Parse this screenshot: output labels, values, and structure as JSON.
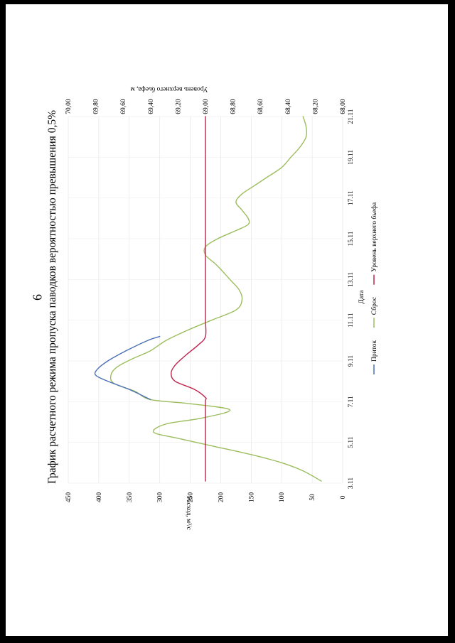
{
  "page_number": "6",
  "chart_data": {
    "type": "line",
    "title": "График расчетного режима пропуска паводков вероятностью превышения 0,5%",
    "xlabel": "Дата",
    "ylabel_left": "Расход, м³/с",
    "ylabel_right": "Уровень верхнего бьефа, м",
    "x_ticks": [
      "3.11",
      "5.11",
      "7.11",
      "9.11",
      "11.11",
      "13.11",
      "15.11",
      "17.11",
      "19.11",
      "21.11"
    ],
    "x_tick_days": [
      3,
      5,
      7,
      9,
      11,
      13,
      15,
      17,
      19,
      21
    ],
    "xlim": [
      3,
      21
    ],
    "ylim_left": [
      0,
      450
    ],
    "yticks_left": [
      0,
      50,
      100,
      150,
      200,
      250,
      300,
      350,
      400,
      450
    ],
    "ylim_right": [
      68.0,
      70.0
    ],
    "yticks_right": [
      "68,00",
      "68,20",
      "68,40",
      "68,60",
      "68,80",
      "69,00",
      "69,20",
      "69,40",
      "69,60",
      "69,80",
      "70,00"
    ],
    "grid": true,
    "legend_position": "bottom",
    "series": [
      {
        "name": "Приток",
        "axis": "left",
        "color": "#4a6fb5",
        "x": [
          7.1,
          7.6,
          8.0,
          8.3,
          8.6,
          9.0,
          9.5,
          10.0,
          10.2
        ],
        "y": [
          315,
          350,
          385,
          405,
          402,
          385,
          355,
          320,
          300
        ]
      },
      {
        "name": "Сброс",
        "axis": "left",
        "color": "#9cbd5e",
        "x": [
          3.1,
          3.6,
          4.0,
          4.4,
          4.8,
          5.2,
          5.5,
          5.9,
          6.2,
          6.6,
          6.9,
          7.1,
          7.5,
          7.9,
          8.3,
          8.7,
          9.1,
          9.5,
          10.0,
          10.5,
          11.0,
          11.5,
          12.0,
          12.5,
          13.0,
          13.5,
          13.8,
          14.2,
          14.6,
          15.0,
          15.4,
          15.7,
          16.0,
          16.4,
          16.8,
          17.2,
          17.6,
          18.0,
          18.5,
          19.0,
          19.5,
          20.0,
          20.5,
          21.0
        ],
        "y": [
          35,
          65,
          100,
          150,
          210,
          270,
          310,
          290,
          230,
          185,
          250,
          315,
          340,
          375,
          380,
          370,
          345,
          315,
          290,
          255,
          215,
          175,
          165,
          170,
          185,
          200,
          210,
          225,
          225,
          205,
          175,
          155,
          155,
          165,
          175,
          165,
          145,
          125,
          100,
          85,
          70,
          60,
          60,
          65
        ]
      },
      {
        "name": "Уровень верхнего бьефа",
        "axis": "right",
        "color": "#c0234e",
        "x": [
          3.1,
          4,
          5,
          6,
          7,
          7.2,
          7.6,
          8,
          8.4,
          8.8,
          9.3,
          9.8,
          10.2,
          11,
          12,
          13,
          14,
          15,
          16,
          17,
          18,
          19,
          20,
          21
        ],
        "y": [
          69.0,
          69.0,
          69.0,
          69.0,
          69.0,
          69.0,
          69.08,
          69.22,
          69.25,
          69.22,
          69.14,
          69.05,
          69.0,
          69.0,
          69.0,
          69.0,
          69.0,
          69.0,
          69.0,
          69.0,
          69.0,
          69.0,
          69.0,
          69.0
        ]
      }
    ]
  }
}
